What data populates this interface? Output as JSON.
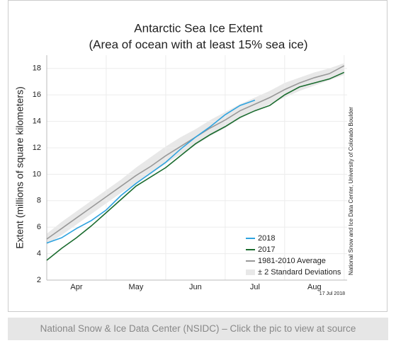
{
  "chart_data": {
    "type": "line",
    "title": "Antarctic Sea Ice Extent",
    "subtitle": "(Area of ocean with at least 15% sea ice)",
    "y_label": "Extent (millions of square kilometers)",
    "annotation": "17 Jul 2018",
    "credit": "National Snow and Ice Data Center, University of Colorado Boulder",
    "categories": [
      "Apr",
      "May",
      "Jun",
      "Jul",
      "Aug"
    ],
    "x": [
      0,
      0.25,
      0.5,
      0.75,
      1,
      1.25,
      1.5,
      1.75,
      2,
      2.25,
      2.5,
      2.75,
      3,
      3.25,
      3.5,
      3.75,
      4,
      4.25,
      4.5,
      4.75,
      5
    ],
    "xlim": [
      0,
      5.05
    ],
    "ylim": [
      2,
      19
    ],
    "yticks": [
      2,
      4,
      6,
      8,
      10,
      12,
      14,
      16,
      18
    ],
    "grid": true,
    "legend": "lower right",
    "band": {
      "name": "± 2 Standard Deviations",
      "color": "#e8e8e8",
      "lower": [
        4.7,
        5.4,
        6.2,
        7.0,
        7.8,
        8.6,
        9.3,
        10.0,
        10.8,
        11.5,
        12.2,
        12.9,
        13.5,
        14.2,
        14.8,
        15.3,
        15.8,
        16.3,
        16.7,
        17.1,
        17.5
      ],
      "upper": [
        5.5,
        6.4,
        7.2,
        8.0,
        8.8,
        9.6,
        10.5,
        11.3,
        12.1,
        12.8,
        13.4,
        14.1,
        14.7,
        15.3,
        15.8,
        16.3,
        16.9,
        17.3,
        17.7,
        18.0,
        18.4
      ]
    },
    "series": [
      {
        "name": "2018",
        "color": "#2ea3df",
        "values": [
          4.8,
          5.2,
          5.9,
          6.5,
          7.3,
          8.4,
          9.3,
          10.1,
          10.9,
          11.9,
          12.8,
          13.6,
          14.5,
          15.2,
          15.6,
          null,
          null,
          null,
          null,
          null,
          null
        ]
      },
      {
        "name": "2017",
        "color": "#1a6b2e",
        "values": [
          3.5,
          4.4,
          5.2,
          6.1,
          7.1,
          8.1,
          9.1,
          9.8,
          10.5,
          11.4,
          12.3,
          13.0,
          13.6,
          14.3,
          14.8,
          15.2,
          16.0,
          16.6,
          16.9,
          17.2,
          17.7
        ]
      },
      {
        "name": "1981-2010 Average",
        "color": "#999999",
        "values": [
          5.1,
          5.9,
          6.7,
          7.5,
          8.3,
          9.1,
          9.9,
          10.6,
          11.4,
          12.1,
          12.8,
          13.5,
          14.1,
          14.8,
          15.3,
          15.8,
          16.4,
          16.9,
          17.3,
          17.6,
          18.2
        ]
      }
    ]
  },
  "caption": "National Snow & Ice Data Center (NSIDC) – Click the pic to view at source"
}
